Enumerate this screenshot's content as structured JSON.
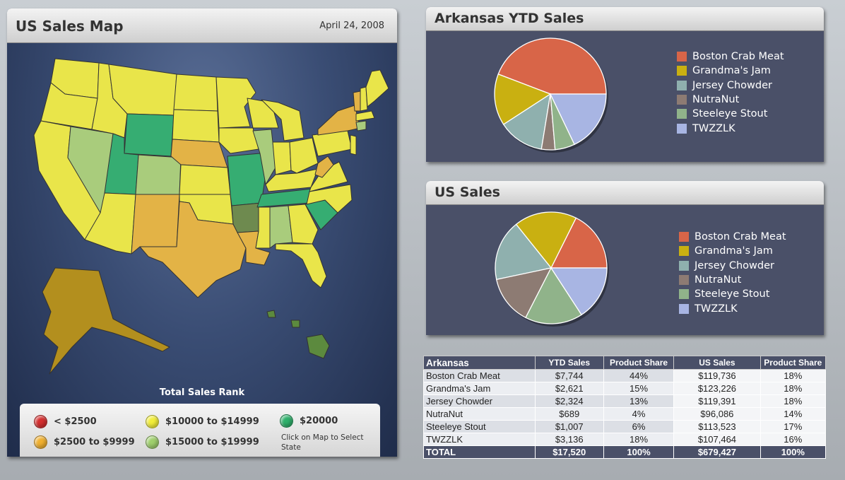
{
  "map_panel": {
    "title": "US Sales Map",
    "date": "April 24, 2008",
    "rank_label": "Total Sales Rank",
    "legend": [
      {
        "label": "< $2500",
        "color": "#d42f2f"
      },
      {
        "label": "$10000 to $14999",
        "color": "#f2ee3a"
      },
      {
        "label": "$20000",
        "color": "#2fb06b"
      },
      {
        "label": "$2500 to $9999",
        "color": "#f0b030"
      },
      {
        "label": "$15000 to $19999",
        "color": "#9fcf6c"
      }
    ],
    "note": "Click on Map to Select State"
  },
  "ark_panel": {
    "title": "Arkansas YTD Sales",
    "chart_data": {
      "type": "pie",
      "title": "Arkansas YTD Sales",
      "labels": [
        "Boston Crab Meat",
        "Grandma's Jam",
        "Jersey Chowder",
        "NutraNut",
        "Steeleye Stout",
        "TWZZLK"
      ],
      "values": [
        7744,
        2621,
        2324,
        689,
        1007,
        3136
      ],
      "colors": [
        "#d86548",
        "#c9b011",
        "#8fb0ae",
        "#8d7b73",
        "#90b38a",
        "#a8b5e3"
      ]
    }
  },
  "us_panel": {
    "title": "US Sales",
    "chart_data": {
      "type": "pie",
      "title": "US Sales",
      "labels": [
        "Boston Crab Meat",
        "Grandma's Jam",
        "Jersey Chowder",
        "NutraNut",
        "Steeleye Stout",
        "TWZZLK"
      ],
      "values": [
        119736,
        123226,
        119391,
        96086,
        113523,
        107464
      ],
      "colors": [
        "#d86548",
        "#c9b011",
        "#8fb0ae",
        "#8d7b73",
        "#90b38a",
        "#a8b5e3"
      ]
    }
  },
  "table": {
    "headers": [
      "Arkansas",
      "YTD Sales",
      "Product Share",
      "US Sales",
      "Product Share"
    ],
    "rows": [
      [
        "Boston Crab Meat",
        "$7,744",
        "44%",
        "$119,736",
        "18%"
      ],
      [
        "Grandma's Jam",
        "$2,621",
        "15%",
        "$123,226",
        "18%"
      ],
      [
        "Jersey Chowder",
        "$2,324",
        "13%",
        "$119,391",
        "18%"
      ],
      [
        "NutraNut",
        "$689",
        "4%",
        "$96,086",
        "14%"
      ],
      [
        "Steeleye Stout",
        "$1,007",
        "6%",
        "$113,523",
        "17%"
      ],
      [
        "TWZZLK",
        "$3,136",
        "18%",
        "$107,464",
        "16%"
      ]
    ],
    "total": [
      "TOTAL",
      "$17,520",
      "100%",
      "$679,427",
      "100%"
    ]
  }
}
